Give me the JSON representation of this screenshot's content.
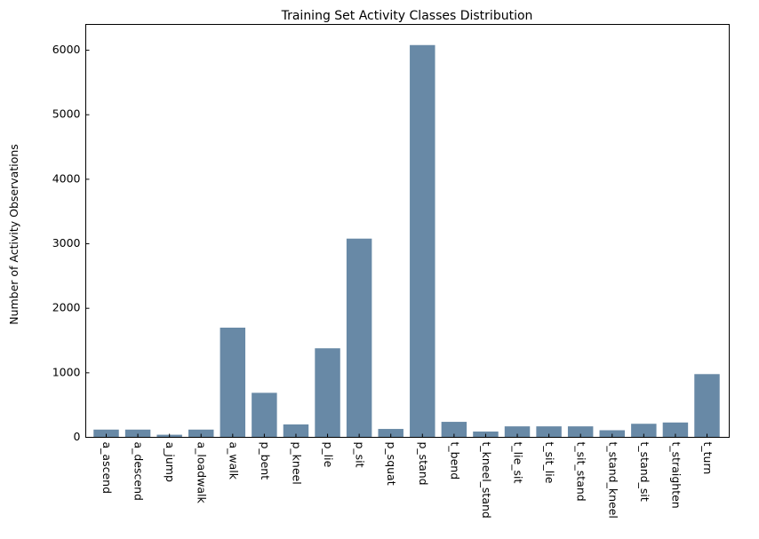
{
  "chart_data": {
    "type": "bar",
    "title": "Training Set Activity Classes Distribution",
    "xlabel": "",
    "ylabel": "Number of Activity Observations",
    "categories": [
      "a_ascend",
      "a_descend",
      "a_jump",
      "a_loadwalk",
      "a_walk",
      "p_bent",
      "p_kneel",
      "p_lie",
      "p_sit",
      "p_squat",
      "p_stand",
      "t_bend",
      "t_kneel_stand",
      "t_lie_sit",
      "t_sit_lie",
      "t_sit_stand",
      "t_stand_kneel",
      "t_stand_sit",
      "t_straighten",
      "t_turn"
    ],
    "values": [
      120,
      120,
      40,
      120,
      1700,
      690,
      200,
      1380,
      3080,
      130,
      6080,
      240,
      90,
      170,
      170,
      170,
      110,
      210,
      230,
      980
    ],
    "ylim": [
      0,
      6400
    ],
    "yticks": [
      0,
      1000,
      2000,
      3000,
      4000,
      5000,
      6000
    ],
    "bar_color": "#6889a6",
    "grid": false,
    "xtick_rotation": "vertical"
  }
}
